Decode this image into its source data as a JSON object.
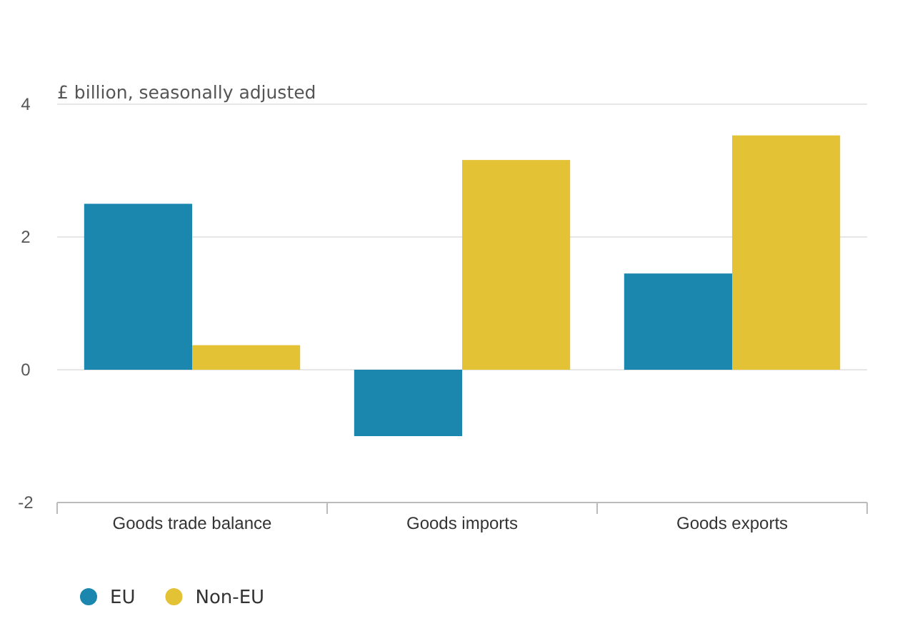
{
  "chart_data": {
    "type": "bar",
    "ylabel": "£ billion, seasonally adjusted",
    "categories": [
      "Goods trade balance",
      "Goods imports",
      "Goods exports"
    ],
    "series": [
      {
        "name": "EU",
        "color": "#1b86ae",
        "values": [
          2.5,
          -1.0,
          1.45
        ]
      },
      {
        "name": "Non-EU",
        "color": "#e3c236",
        "values": [
          0.37,
          3.16,
          3.53
        ]
      }
    ],
    "ylim": [
      -2,
      4
    ],
    "yticks": [
      -2,
      0,
      2,
      4
    ],
    "grid": "y",
    "legend": "bottom left"
  }
}
